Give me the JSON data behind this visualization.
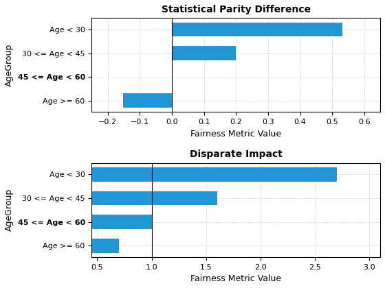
{
  "chart1": {
    "title": "Statistical Parity Difference",
    "xlabel": "Fairness Metric Value",
    "ylabel": "AgeGroup",
    "categories": [
      "Age < 30",
      "30 <= Age < 45",
      "45 <= Age < 60",
      "Age >= 60"
    ],
    "values": [
      0.531,
      0.2,
      0.001,
      -0.152
    ],
    "xlim": [
      -0.25,
      0.65
    ],
    "xticks": [
      -0.2,
      -0.1,
      0.0,
      0.1,
      0.2,
      0.3,
      0.4,
      0.5,
      0.6
    ],
    "bar_color": "#2196d3",
    "vline": 0.0
  },
  "chart2": {
    "title": "Disparate Impact",
    "xlabel": "Fairness Metric Value",
    "ylabel": "AgeGroup",
    "categories": [
      "Age < 30",
      "30 <= Age < 45",
      "45 <= Age < 60",
      "Age >= 60"
    ],
    "values": [
      2.7,
      1.6,
      1.01,
      0.7
    ],
    "xlim": [
      0.45,
      3.1
    ],
    "xticks": [
      0.5,
      1.0,
      1.5,
      2.0,
      2.5,
      3.0
    ],
    "bar_color": "#2196d3",
    "vline": 1.0
  },
  "bold_labels": [
    "45 <= Age < 60"
  ],
  "fig_facecolor": "#ffffff",
  "grid_color": "#aaaaaa",
  "grid_linestyle": ":"
}
